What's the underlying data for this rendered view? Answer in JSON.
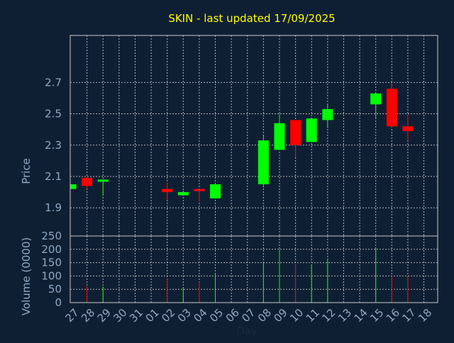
{
  "title": "SKIN - last updated 17/09/2025",
  "colors": {
    "background": "#0f1f33",
    "plot_border": "#c8c8c8",
    "grid": "#c8c8c8",
    "title": "#ffff00",
    "axis_label": "#8fa9c4",
    "tick_label": "#8fa9c4",
    "up": "#00ff00",
    "down": "#ff0000"
  },
  "chart_data": [
    {
      "type": "candlestick",
      "ylabel": "Price",
      "ylim": [
        1.72,
        3.0
      ],
      "yticks": [
        1.9,
        2.1,
        2.3,
        2.5,
        2.7
      ],
      "ytick_labels": [
        "1.9",
        "2.1",
        "2.3",
        "2.5",
        "2.7"
      ],
      "grid": true,
      "categories": [
        "27",
        "28",
        "29",
        "30",
        "31",
        "01",
        "02",
        "03",
        "04",
        "05",
        "06",
        "07",
        "08",
        "09",
        "10",
        "11",
        "12",
        "13",
        "14",
        "15",
        "16",
        "17",
        "18"
      ],
      "candles": [
        {
          "day": "27",
          "open": 2.02,
          "high": 2.05,
          "low": 2.02,
          "close": 2.05
        },
        {
          "day": "28",
          "open": 2.09,
          "high": 2.1,
          "low": 2.02,
          "close": 2.04
        },
        {
          "day": "29",
          "open": 2.07,
          "high": 2.08,
          "low": 1.98,
          "close": 2.08
        },
        {
          "day": "02",
          "open": 2.02,
          "high": 2.06,
          "low": 1.95,
          "close": 2.0
        },
        {
          "day": "03",
          "open": 1.98,
          "high": 2.01,
          "low": 1.98,
          "close": 2.0
        },
        {
          "day": "04",
          "open": 2.02,
          "high": 2.02,
          "low": 1.94,
          "close": 2.01
        },
        {
          "day": "05",
          "open": 1.96,
          "high": 2.05,
          "low": 1.96,
          "close": 2.05
        },
        {
          "day": "08",
          "open": 2.05,
          "high": 2.36,
          "low": 2.03,
          "close": 2.33
        },
        {
          "day": "09",
          "open": 2.27,
          "high": 2.5,
          "low": 2.27,
          "close": 2.44
        },
        {
          "day": "10",
          "open": 2.46,
          "high": 2.46,
          "low": 2.22,
          "close": 2.3
        },
        {
          "day": "11",
          "open": 2.32,
          "high": 2.47,
          "low": 2.32,
          "close": 2.47
        },
        {
          "day": "12",
          "open": 2.46,
          "high": 2.56,
          "low": 2.41,
          "close": 2.53
        },
        {
          "day": "15",
          "open": 2.56,
          "high": 2.63,
          "low": 2.47,
          "close": 2.63
        },
        {
          "day": "16",
          "open": 2.66,
          "high": 2.69,
          "low": 2.41,
          "close": 2.42
        },
        {
          "day": "17",
          "open": 2.42,
          "high": 2.5,
          "low": 2.33,
          "close": 2.39
        }
      ]
    },
    {
      "type": "bar",
      "ylabel": "Volume (0000)",
      "xlabel": "Day",
      "ylim": [
        0,
        250
      ],
      "yticks": [
        0,
        50,
        100,
        150,
        200,
        250
      ],
      "ytick_labels": [
        "0",
        "50",
        "100",
        "150",
        "200",
        "250"
      ],
      "grid": true,
      "categories": [
        "27",
        "28",
        "29",
        "30",
        "31",
        "01",
        "02",
        "03",
        "04",
        "05",
        "06",
        "07",
        "08",
        "09",
        "10",
        "11",
        "12",
        "13",
        "14",
        "15",
        "16",
        "17",
        "18"
      ],
      "bars": [
        {
          "day": "28",
          "value": 60,
          "direction": "down"
        },
        {
          "day": "29",
          "value": 60,
          "direction": "up"
        },
        {
          "day": "02",
          "value": 90,
          "direction": "down"
        },
        {
          "day": "03",
          "value": 55,
          "direction": "up"
        },
        {
          "day": "04",
          "value": 78,
          "direction": "down"
        },
        {
          "day": "05",
          "value": 110,
          "direction": "up"
        },
        {
          "day": "08",
          "value": 150,
          "direction": "up"
        },
        {
          "day": "09",
          "value": 200,
          "direction": "up"
        },
        {
          "day": "10",
          "value": 145,
          "direction": "down"
        },
        {
          "day": "11",
          "value": 143,
          "direction": "up"
        },
        {
          "day": "12",
          "value": 165,
          "direction": "up"
        },
        {
          "day": "15",
          "value": 205,
          "direction": "up"
        },
        {
          "day": "16",
          "value": 100,
          "direction": "down"
        },
        {
          "day": "17",
          "value": 98,
          "direction": "down"
        }
      ]
    }
  ]
}
